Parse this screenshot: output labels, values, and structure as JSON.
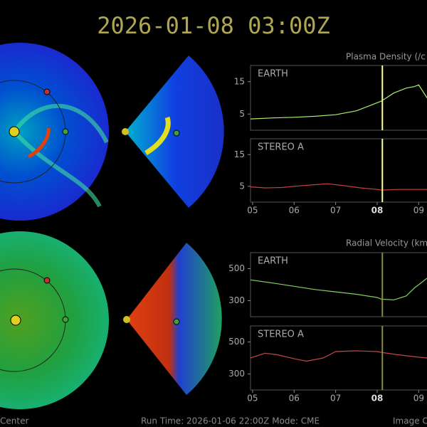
{
  "header": {
    "title": "2026-01-08  03:00Z"
  },
  "footer": {
    "left": "Center",
    "center": "Run Time: 2026-01-06 22:00Z  Mode: CME",
    "right": "Image C"
  },
  "chart_data": [
    {
      "type": "line",
      "title": "Plasma Density (/c",
      "xlim": [
        4.95,
        9.2
      ],
      "ylim": [
        0,
        20
      ],
      "yticks": [
        5,
        15
      ],
      "cursor_x": 8.125,
      "cursor_color": "#ffff99",
      "x": [
        4.95,
        5.5,
        6,
        6.5,
        7,
        7.5,
        7.8,
        8.1,
        8.4,
        8.7,
        8.9,
        9.0,
        9.1,
        9.2
      ],
      "series": [
        {
          "name": "EARTH",
          "color": "#a8f070",
          "values": [
            3.5,
            3.8,
            4,
            4.3,
            4.8,
            6,
            7.5,
            9,
            11.5,
            13,
            13.5,
            14,
            12,
            10
          ]
        }
      ]
    },
    {
      "type": "line",
      "xlim": [
        4.95,
        9.2
      ],
      "ylim": [
        0,
        20
      ],
      "yticks": [
        5,
        15
      ],
      "cursor_x": 8.125,
      "cursor_color": "#ffff99",
      "xticks": [
        {
          "value": 5,
          "label": "05"
        },
        {
          "value": 6,
          "label": "06"
        },
        {
          "value": 7,
          "label": "07"
        },
        {
          "value": 8,
          "label": "08"
        },
        {
          "value": 9,
          "label": "09"
        }
      ],
      "x": [
        4.95,
        5.3,
        5.7,
        6,
        6.5,
        6.8,
        7.2,
        7.6,
        8,
        8.1,
        8.5,
        9,
        9.2
      ],
      "series": [
        {
          "name": "STEREO A",
          "color": "#c84040",
          "values": [
            4.8,
            4.5,
            4.6,
            5,
            5.5,
            5.8,
            5.2,
            4.5,
            4,
            3.8,
            4,
            4,
            4
          ]
        }
      ]
    },
    {
      "type": "line",
      "title": "Radial Velocity (km",
      "xlim": [
        4.95,
        9.2
      ],
      "ylim": [
        200,
        600
      ],
      "yticks": [
        300,
        500
      ],
      "cursor_x": 8.125,
      "cursor_color": "#8a8a40",
      "x": [
        4.95,
        5.5,
        6,
        6.5,
        7,
        7.5,
        8,
        8.1,
        8.4,
        8.7,
        8.9,
        9.1,
        9.2
      ],
      "series": [
        {
          "name": "EARTH",
          "color": "#80d060",
          "values": [
            430,
            410,
            390,
            370,
            355,
            340,
            320,
            310,
            305,
            330,
            380,
            420,
            440
          ]
        }
      ]
    },
    {
      "type": "line",
      "xlim": [
        4.95,
        9.2
      ],
      "ylim": [
        200,
        600
      ],
      "yticks": [
        300,
        500
      ],
      "cursor_x": 8.125,
      "cursor_color": "#8a8a40",
      "xticks": [
        {
          "value": 5,
          "label": "05"
        },
        {
          "value": 6,
          "label": "06"
        },
        {
          "value": 7,
          "label": "07"
        },
        {
          "value": 8,
          "label": "08"
        },
        {
          "value": 9,
          "label": "09"
        }
      ],
      "x": [
        4.95,
        5.3,
        5.6,
        6,
        6.3,
        6.7,
        7,
        7.5,
        8,
        8.1,
        8.5,
        9,
        9.2
      ],
      "series": [
        {
          "name": "STEREO A",
          "color": "#c04848",
          "values": [
            400,
            430,
            420,
            395,
            380,
            400,
            440,
            445,
            440,
            435,
            420,
            405,
            400
          ]
        }
      ]
    }
  ]
}
